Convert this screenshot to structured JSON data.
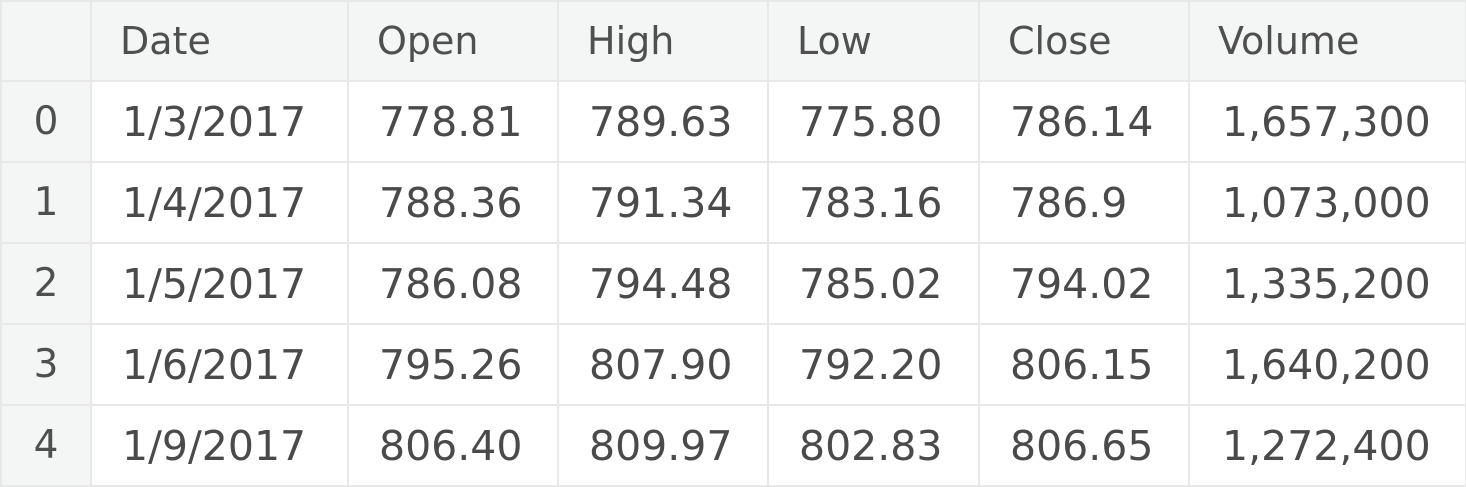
{
  "table": {
    "columns": [
      "",
      "Date",
      "Open",
      "High",
      "Low",
      "Close",
      "Volume"
    ],
    "rows": [
      {
        "index": "0",
        "date": "1/3/2017",
        "open": "778.81",
        "high": "789.63",
        "low": "775.80",
        "close": "786.14",
        "volume": "1,657,300"
      },
      {
        "index": "1",
        "date": "1/4/2017",
        "open": "788.36",
        "high": "791.34",
        "low": "783.16",
        "close": "786.9",
        "volume": "1,073,000"
      },
      {
        "index": "2",
        "date": "1/5/2017",
        "open": "786.08",
        "high": "794.48",
        "low": "785.02",
        "close": "794.02",
        "volume": "1,335,200"
      },
      {
        "index": "3",
        "date": "1/6/2017",
        "open": "795.26",
        "high": "807.90",
        "low": "792.20",
        "close": "806.15",
        "volume": "1,640,200"
      },
      {
        "index": "4",
        "date": "1/9/2017",
        "open": "806.40",
        "high": "809.97",
        "low": "802.83",
        "close": "806.65",
        "volume": "1,272,400"
      }
    ]
  }
}
